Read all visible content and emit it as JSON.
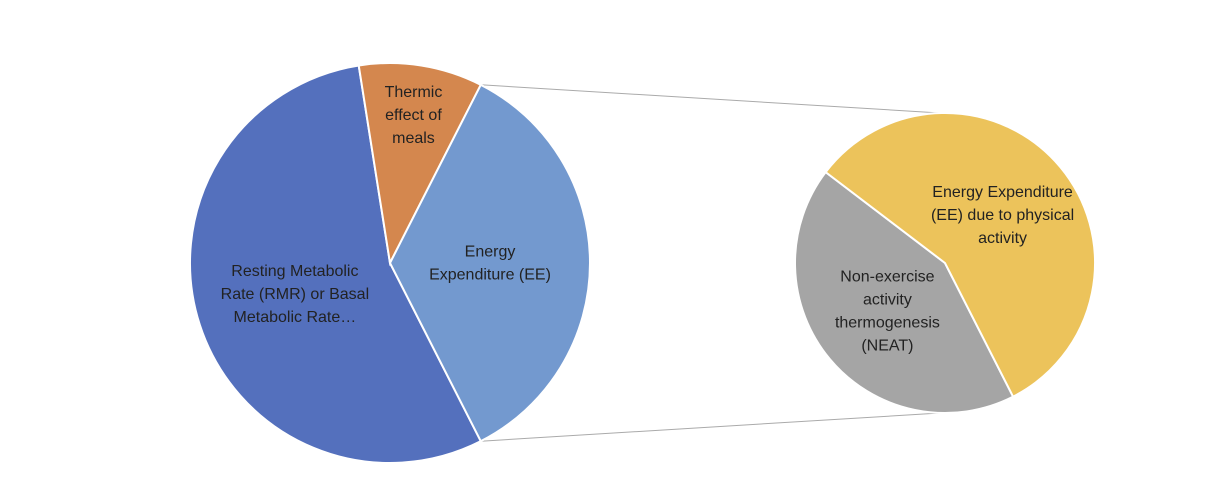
{
  "chart_data": {
    "type": "pie_of_pie",
    "categories": [
      "Resting Metabolic Rate (RMR) or Basal Metabolic Rate…",
      "Thermic effect of meals",
      "Energy Expenditure (EE)"
    ],
    "values": [
      55,
      10,
      35
    ],
    "colors": [
      "#5470bd",
      "#d4874e",
      "#7399cf"
    ],
    "secondary": {
      "categories": [
        "Non-exercise activity thermogenesis (NEAT)",
        "Energy Expenditure (EE) due to physical activity"
      ],
      "values": [
        15,
        20
      ],
      "colors": [
        "#a5a5a5",
        "#ecc35b"
      ]
    }
  }
}
